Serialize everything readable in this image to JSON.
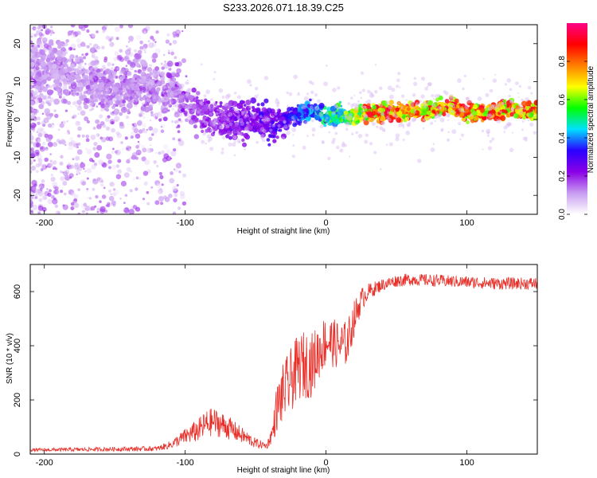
{
  "title": "S233.2026.071.18.39.C25",
  "chart_data": [
    {
      "type": "heatmap",
      "xlabel": "Height of straight line (km)",
      "ylabel": "Frequency (Hz)",
      "xlim": [
        -210,
        150
      ],
      "ylim": [
        -25,
        25
      ],
      "x_ticks": [
        -200,
        -100,
        0,
        100
      ],
      "y_ticks": [
        20,
        10,
        0,
        -10,
        -20
      ],
      "colorbar": {
        "label": "Normalized spectral amplitude",
        "range": [
          0,
          1
        ],
        "ticks": [
          "0.0",
          "0.2",
          "0.4",
          "0.6",
          "0.8"
        ],
        "colors": [
          "#ffffff",
          "#c89cf0",
          "#8a00e6",
          "#2a00ff",
          "#00e0ff",
          "#00ff00",
          "#ffff00",
          "#ff7f00",
          "#ff0000",
          "#ff0088"
        ]
      },
      "trend": {
        "x": [
          -210,
          -180,
          -150,
          -130,
          -110,
          -95,
          -80,
          -65,
          -50,
          -40,
          -30,
          -20,
          -10,
          0,
          10,
          25,
          50,
          75,
          90,
          100,
          125,
          150
        ],
        "y": [
          14,
          11,
          8,
          9,
          7,
          3,
          0,
          -1,
          1,
          -1.5,
          0,
          1.5,
          2.5,
          0.5,
          1,
          1.5,
          2,
          2.5,
          3.5,
          1.5,
          2.5,
          2.5
        ]
      },
      "amplitude_trend": {
        "x": [
          -210,
          -110,
          -100,
          -50,
          -30,
          0,
          20,
          30,
          150
        ],
        "a": [
          0.12,
          0.15,
          0.2,
          0.3,
          0.35,
          0.55,
          0.75,
          0.95,
          0.95
        ]
      }
    },
    {
      "type": "line",
      "xlabel": "Height of straight line (km)",
      "ylabel": "SNR (10 * v/v)",
      "xlim": [
        -210,
        150
      ],
      "ylim": [
        0,
        700
      ],
      "x_ticks": [
        -200,
        -100,
        0,
        100
      ],
      "y_ticks": [
        0,
        200,
        400,
        600
      ],
      "series": [
        {
          "name": "SNR",
          "color": "#e8302a",
          "envelope": {
            "x": [
              -210,
              -120,
              -110,
              -100,
              -90,
              -85,
              -80,
              -70,
              -60,
              -50,
              -42,
              -38,
              -35,
              -30,
              -25,
              -20,
              -15,
              -10,
              -5,
              0,
              5,
              10,
              15,
              20,
              25,
              30,
              40,
              50,
              60,
              80,
              100,
              120,
              150
            ],
            "mean": [
              15,
              20,
              35,
              65,
              90,
              110,
              120,
              100,
              70,
              40,
              30,
              80,
              170,
              230,
              270,
              320,
              330,
              330,
              380,
              420,
              410,
              400,
              410,
              500,
              570,
              600,
              625,
              640,
              645,
              640,
              635,
              630,
              630
            ],
            "spread": [
              8,
              12,
              20,
              40,
              60,
              70,
              70,
              60,
              40,
              25,
              15,
              50,
              120,
              150,
              160,
              160,
              170,
              160,
              140,
              130,
              120,
              120,
              110,
              90,
              60,
              40,
              30,
              30,
              30,
              30,
              30,
              30,
              30
            ]
          }
        }
      ]
    }
  ]
}
